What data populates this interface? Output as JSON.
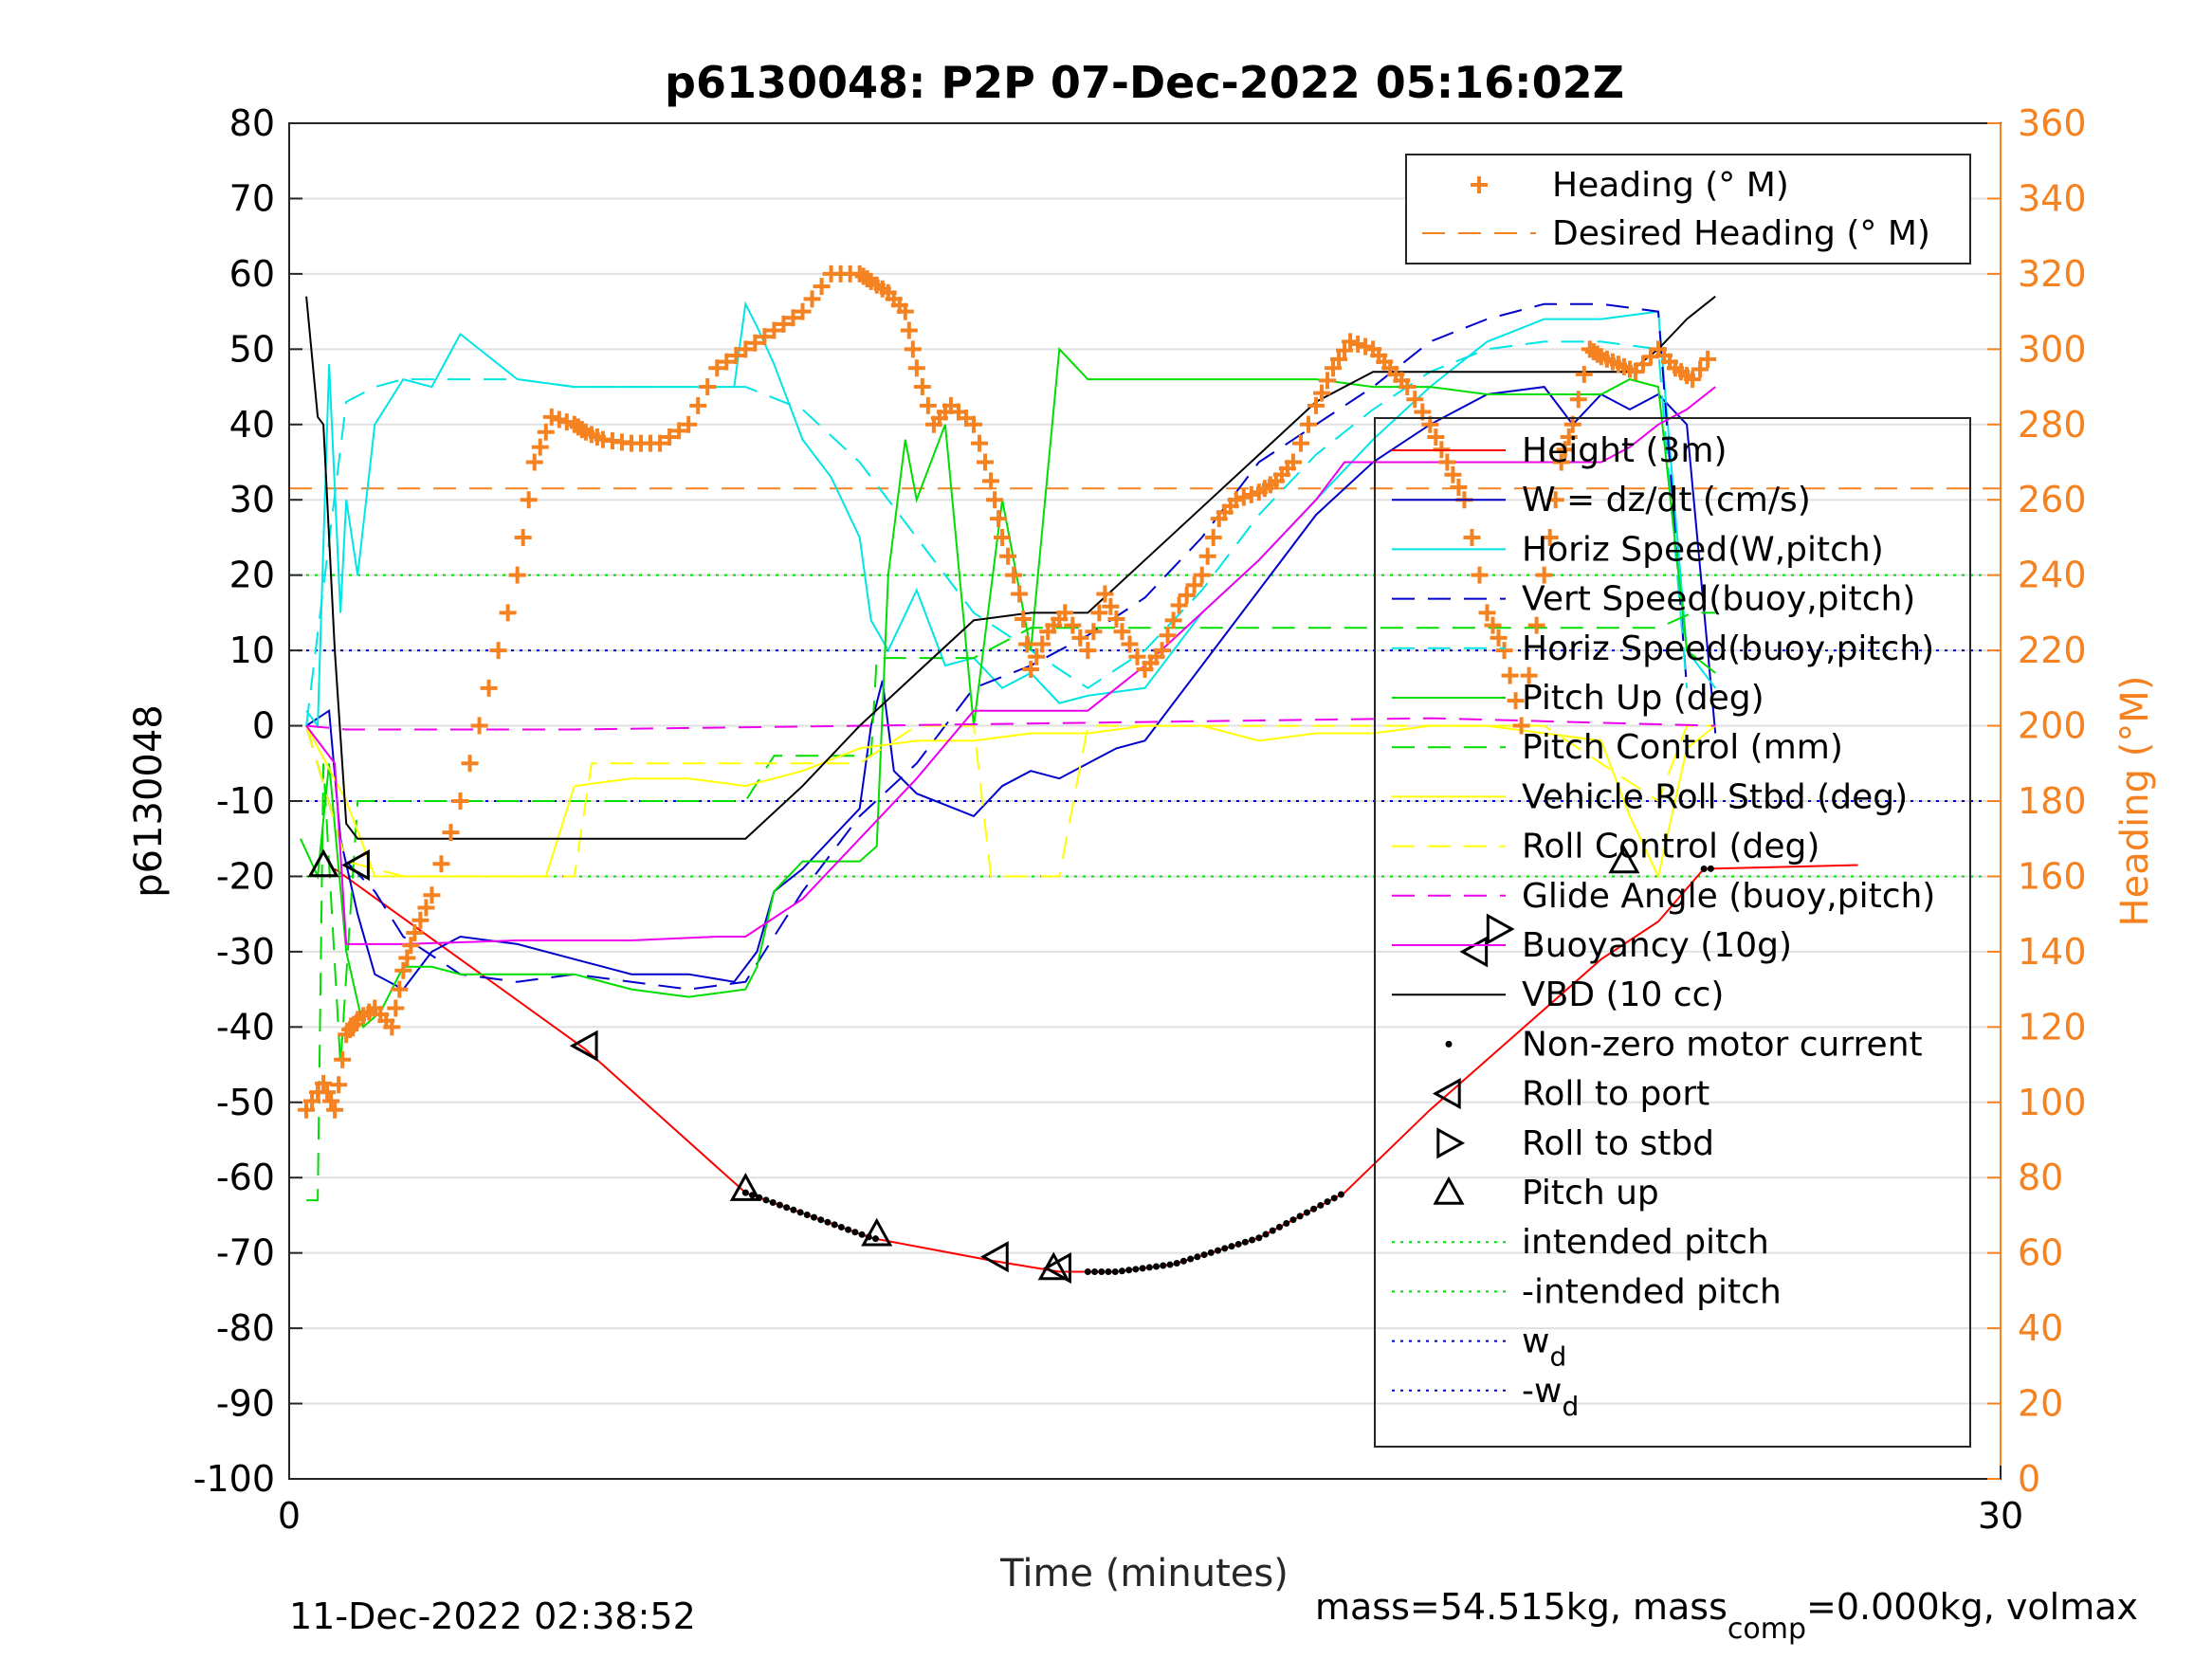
{
  "chart_data": {
    "type": "line",
    "title": "p6130048: P2P 07-Dec-2022 05:16:02Z",
    "xlabel": "Time (minutes)",
    "ylabel": "p6130048",
    "y2label": "Heading (°M)",
    "xlim": [
      0,
      30
    ],
    "ylim": [
      -100,
      80
    ],
    "y2lim": [
      0,
      360
    ],
    "xticks": [
      "0",
      "30"
    ],
    "yticks": [
      "-100",
      "-90",
      "-80",
      "-70",
      "-60",
      "-50",
      "-40",
      "-30",
      "-20",
      "-10",
      "0",
      "10",
      "20",
      "30",
      "40",
      "50",
      "60",
      "70",
      "80"
    ],
    "y2ticks": [
      "0",
      "20",
      "40",
      "60",
      "80",
      "100",
      "120",
      "140",
      "160",
      "180",
      "200",
      "220",
      "240",
      "260",
      "280",
      "300",
      "320",
      "340",
      "360"
    ],
    "grid": true,
    "footer_left": "11-Dec-2022 02:38:52",
    "footer_right": {
      "pre": "mass=54.515kg, mass",
      "sub": "comp",
      "post": "=0.000kg, volmax"
    },
    "legend_top": [
      {
        "name": "Heading (° M)",
        "style": "plus",
        "color": "#f58220"
      },
      {
        "name": "Desired Heading (° M)",
        "style": "dash",
        "color": "#f58220"
      }
    ],
    "legend_main": [
      {
        "name": "Height (3m)",
        "style": "solid",
        "color": "#ff0000"
      },
      {
        "name": "W = dz/dt (cm/s)",
        "style": "solid",
        "color": "#0000cc"
      },
      {
        "name": "Horiz Speed(W,pitch)",
        "style": "solid",
        "color": "#00e5e5"
      },
      {
        "name": "Vert Speed(buoy,pitch)",
        "style": "dash",
        "color": "#0000cc"
      },
      {
        "name": "Horiz Speed(buoy,pitch)",
        "style": "dash",
        "color": "#00e5e5"
      },
      {
        "name": "Pitch Up (deg)",
        "style": "solid",
        "color": "#00dd00"
      },
      {
        "name": "Pitch Control (mm)",
        "style": "dash",
        "color": "#00dd00"
      },
      {
        "name": "Vehicle Roll Stbd (deg)",
        "style": "solid",
        "color": "#ffff00"
      },
      {
        "name": "Roll Control (deg)",
        "style": "dash",
        "color": "#ffff00"
      },
      {
        "name": "Glide Angle (buoy,pitch)",
        "style": "dash",
        "color": "#ee00ee"
      },
      {
        "name": "Buoyancy (10g)",
        "style": "solid",
        "color": "#ee00ee"
      },
      {
        "name": "VBD (10 cc)",
        "style": "solid",
        "color": "#000000"
      },
      {
        "name": "Non-zero motor current",
        "style": "dot",
        "color": "#000000"
      },
      {
        "name": "Roll to port",
        "style": "tri-left",
        "color": "#000000"
      },
      {
        "name": "Roll to stbd",
        "style": "tri-right",
        "color": "#000000"
      },
      {
        "name": "Pitch up",
        "style": "tri-up",
        "color": "#000000"
      },
      {
        "name": "intended pitch",
        "style": "dotted",
        "color": "#00dd00"
      },
      {
        "name": "-intended pitch",
        "style": "dotted",
        "color": "#00dd00"
      },
      {
        "name": "w",
        "sub": "d",
        "style": "dotted",
        "color": "#0000cc"
      },
      {
        "name": "-w",
        "sub": "d",
        "style": "dotted",
        "color": "#0000cc"
      }
    ],
    "reference_lines": [
      {
        "axis": "y",
        "value": 20,
        "color": "#00dd00",
        "style": "dotted"
      },
      {
        "axis": "y",
        "value": -20,
        "color": "#00dd00",
        "style": "dotted"
      },
      {
        "axis": "y",
        "value": 10,
        "color": "#0000cc",
        "style": "dotted"
      },
      {
        "axis": "y",
        "value": -10,
        "color": "#0000cc",
        "style": "dotted"
      },
      {
        "axis": "y2",
        "value": 263,
        "color": "#f58220",
        "style": "dash"
      }
    ],
    "series": [
      {
        "name": "Height (3m)",
        "color": "#ff0000",
        "style": "solid",
        "x": [
          0.8,
          5.2,
          8,
          10.2,
          12.3,
          13.5,
          14.5,
          15.5,
          17,
          18.5,
          20,
          21.5,
          23,
          24,
          24.8,
          27.5
        ],
        "y": [
          -19,
          -43,
          -62,
          -68,
          -71,
          -72.5,
          -72.5,
          -71.5,
          -68,
          -62,
          -51,
          -41,
          -31,
          -26,
          -19,
          -18.5
        ]
      },
      {
        "name": "W = dz/dt (cm/s)",
        "color": "#0000cc",
        "style": "solid",
        "x": [
          0.3,
          0.7,
          0.9,
          1.2,
          1.5,
          2,
          2.5,
          3,
          4,
          5,
          6,
          7,
          7.8,
          8.2,
          8.5,
          9,
          10,
          10.2,
          10.4,
          10.6,
          11,
          12,
          12.5,
          13,
          13.5,
          14,
          14.5,
          15,
          16,
          17,
          18,
          19,
          20,
          21,
          22,
          22.5,
          23,
          23.5,
          24,
          24.5,
          25
        ],
        "y": [
          0,
          2,
          -15,
          -25,
          -33,
          -35,
          -30,
          -28,
          -29,
          -31,
          -33,
          -33,
          -34,
          -30,
          -22,
          -19,
          -11,
          0,
          6,
          -6,
          -9,
          -12,
          -8,
          -6,
          -7,
          -5,
          -3,
          -2,
          8,
          18,
          28,
          35,
          40,
          44,
          45,
          40,
          44,
          42,
          44,
          40,
          -1
        ]
      },
      {
        "name": "Horiz Speed(W,pitch)",
        "color": "#00e5e5",
        "style": "solid",
        "x": [
          0.3,
          0.5,
          0.7,
          0.9,
          1,
          1.2,
          1.5,
          2,
          2.5,
          3,
          4,
          5,
          6,
          7,
          7.8,
          8,
          8.2,
          8.5,
          9,
          9.5,
          10,
          10.2,
          10.5,
          11,
          11.5,
          12,
          12.5,
          13,
          13.5,
          14,
          15,
          16,
          17,
          18,
          19,
          20,
          21,
          22,
          23,
          24,
          24.5,
          25
        ],
        "y": [
          2,
          0,
          48,
          15,
          30,
          20,
          40,
          46,
          45,
          52,
          46,
          45,
          45,
          45,
          45,
          56,
          53,
          48,
          38,
          33,
          25,
          14,
          10,
          18,
          8,
          9,
          5,
          7,
          3,
          4,
          5,
          15,
          22,
          30,
          38,
          45,
          51,
          54,
          54,
          55,
          10,
          5
        ]
      },
      {
        "name": "Vert Speed(buoy,pitch)",
        "color": "#0000cc",
        "style": "dash",
        "x": [
          0.3,
          1,
          1.5,
          2,
          3,
          4,
          5,
          6,
          7,
          8,
          9,
          10,
          11,
          12,
          13,
          14,
          15,
          16,
          17,
          18,
          19,
          20,
          21,
          22,
          23,
          24,
          24.5
        ],
        "y": [
          0,
          -18,
          -22,
          -28,
          -33,
          -34,
          -33,
          -34,
          -35,
          -34,
          -22,
          -12,
          -5,
          5,
          8,
          12,
          17,
          25,
          35,
          40,
          45,
          51,
          54,
          56,
          56,
          55,
          5
        ]
      },
      {
        "name": "Horiz Speed(buoy,pitch)",
        "color": "#00e5e5",
        "style": "dash",
        "x": [
          0.3,
          1,
          1.5,
          2,
          3,
          4,
          5,
          6,
          7,
          8,
          9,
          10,
          11,
          12,
          13,
          14,
          15,
          16,
          17,
          18,
          19,
          20,
          21,
          22,
          23,
          24,
          24.5
        ],
        "y": [
          0,
          43,
          45,
          46,
          46,
          46,
          45,
          45,
          45,
          45,
          42,
          35,
          25,
          15,
          10,
          5,
          10,
          18,
          28,
          36,
          42,
          47,
          50,
          51,
          51,
          50,
          5
        ]
      },
      {
        "name": "Pitch Up (deg)",
        "color": "#00dd00",
        "style": "solid",
        "x": [
          0.2,
          0.5,
          0.7,
          1,
          1.3,
          1.6,
          2,
          2.5,
          3,
          4,
          5,
          6,
          7,
          8,
          8.2,
          8.5,
          9,
          10,
          10.3,
          10.5,
          10.8,
          11,
          11.5,
          12,
          12.5,
          13,
          13.5,
          14,
          15,
          16,
          17,
          18,
          19,
          20,
          21,
          22,
          23,
          23.5,
          24,
          24.5,
          25
        ],
        "y": [
          -15,
          -20,
          -5,
          -30,
          -40,
          -38,
          -32,
          -32,
          -33,
          -33,
          -33,
          -35,
          -36,
          -35,
          -32,
          -22,
          -18,
          -18,
          -16,
          20,
          38,
          30,
          40,
          0,
          30,
          10,
          50,
          46,
          46,
          46,
          46,
          46,
          45,
          45,
          44,
          44,
          44,
          46,
          45,
          10,
          7
        ]
      },
      {
        "name": "Pitch Control (mm)",
        "color": "#00dd00",
        "style": "dash",
        "x": [
          0.3,
          0.5,
          0.6,
          0.9,
          1.2,
          2,
          4,
          6,
          7.5,
          8,
          8.5,
          9,
          10,
          10.2,
          10.3,
          11,
          12,
          13,
          14,
          15,
          16,
          17,
          18,
          19,
          20,
          21,
          22,
          23,
          24,
          24.6,
          25
        ],
        "y": [
          -63,
          -63,
          -5,
          -45,
          -10,
          -10,
          -10,
          -10,
          -10,
          -10,
          -4,
          -4,
          -4,
          -4,
          9,
          9,
          9,
          13,
          13,
          13,
          13,
          13,
          13,
          13,
          13,
          13,
          13,
          13,
          13,
          15,
          15
        ]
      },
      {
        "name": "Vehicle Roll Stbd (deg)",
        "color": "#ffff00",
        "style": "solid",
        "x": [
          0.3,
          1,
          1.5,
          2,
          3,
          4,
          4.5,
          5,
          6,
          7,
          8,
          9,
          10,
          11,
          12,
          13,
          14,
          15,
          16,
          17,
          18,
          19,
          20,
          21,
          22,
          23,
          23.5,
          24,
          24.5,
          25
        ],
        "y": [
          0,
          -10,
          -20,
          -20,
          -20,
          -20,
          -20,
          -8,
          -7,
          -7,
          -8,
          -6,
          -3,
          -2,
          -2,
          -1,
          -1,
          0,
          0,
          -2,
          -1,
          -1,
          0,
          0,
          -1,
          -2,
          -12,
          -20,
          -3,
          0
        ]
      },
      {
        "name": "Roll Control (deg)",
        "color": "#ffff00",
        "style": "dash",
        "x": [
          0.3,
          1,
          2,
          3,
          4,
          5,
          5.3,
          6,
          7,
          8,
          9,
          10,
          11,
          12,
          12.3,
          13,
          13.5,
          14,
          15,
          16,
          17,
          18,
          19,
          20,
          21,
          22,
          23,
          24,
          24.5,
          25
        ],
        "y": [
          0,
          -18,
          -20,
          -20,
          -20,
          -20,
          -5,
          -5,
          -5,
          -5,
          -5,
          -5,
          0,
          0,
          -20,
          -20,
          -20,
          0,
          0,
          0,
          0,
          0,
          0,
          0,
          0,
          0,
          -5,
          -10,
          0,
          0
        ]
      },
      {
        "name": "Glide Angle (buoy,pitch)",
        "color": "#ee00ee",
        "style": "dash",
        "x": [
          0.3,
          1,
          5,
          10,
          15,
          20,
          25
        ],
        "y": [
          0,
          -0.5,
          -0.5,
          0,
          0.5,
          1,
          0
        ]
      },
      {
        "name": "Buoyancy (10g)",
        "color": "#ee00ee",
        "style": "solid",
        "x": [
          0.3,
          0.8,
          1,
          2,
          4,
          6,
          7.5,
          8,
          9,
          10,
          11,
          12,
          13,
          14,
          15,
          16,
          17,
          18,
          18.5,
          20,
          22,
          23,
          23.5,
          24,
          24.5,
          25
        ],
        "y": [
          0,
          -5,
          -29,
          -29,
          -28.5,
          -28.5,
          -28,
          -28,
          -23,
          -15,
          -7,
          2,
          2,
          2,
          8,
          15,
          22,
          30,
          35,
          35,
          35,
          35,
          37,
          40,
          42,
          45
        ]
      },
      {
        "name": "VBD (10 cc)",
        "color": "#000000",
        "style": "solid",
        "x": [
          0.3,
          0.5,
          0.6,
          0.8,
          1,
          1.2,
          2,
          4,
          6,
          7,
          8,
          9,
          10,
          11,
          12,
          13,
          14,
          15,
          16,
          17,
          18,
          19,
          20,
          21,
          22,
          23,
          23.5,
          24,
          24.5,
          25
        ],
        "y": [
          57,
          41,
          40,
          10,
          -13,
          -15,
          -15,
          -15,
          -15,
          -15,
          -15,
          -8,
          0,
          7,
          14,
          15,
          15,
          22,
          29,
          36,
          43,
          47,
          47,
          47,
          47,
          47,
          47,
          50,
          54,
          57
        ]
      },
      {
        "name": "Heading (° M)",
        "color": "#f58220",
        "style": "plus",
        "axis": "y2",
        "x": [
          0.3,
          0.6,
          0.8,
          1,
          1.2,
          1.5,
          1.8,
          2,
          2.2,
          2.5,
          3,
          3.5,
          4,
          4.3,
          4.6,
          5,
          5.2,
          5.5,
          6,
          6.5,
          7,
          7.5,
          8,
          8.5,
          9,
          9.5,
          10,
          10.2,
          10.5,
          10.8,
          11,
          11.3,
          11.6,
          12,
          12.3,
          12.5,
          12.8,
          13,
          13.3,
          13.6,
          14,
          14.3,
          14.6,
          15,
          15.3,
          15.6,
          16,
          16.3,
          16.6,
          17,
          17.3,
          17.6,
          18,
          18.3,
          18.6,
          19,
          19.3,
          19.6,
          20,
          20.3,
          20.6,
          21,
          21.3,
          21.6,
          22,
          22.3,
          22.5,
          22.8,
          23,
          23.3,
          23.6,
          24,
          24.3,
          24.6,
          25
        ],
        "y": [
          98,
          105,
          98,
          118,
          122,
          125,
          120,
          135,
          145,
          155,
          180,
          210,
          240,
          270,
          282,
          280,
          278,
          276,
          275,
          275,
          280,
          295,
          300,
          305,
          310,
          320,
          320,
          318,
          315,
          310,
          295,
          280,
          285,
          280,
          265,
          250,
          235,
          215,
          225,
          230,
          220,
          235,
          225,
          215,
          220,
          232,
          240,
          255,
          260,
          262,
          265,
          270,
          285,
          295,
          302,
          300,
          295,
          290,
          280,
          270,
          260,
          230,
          220,
          200,
          240,
          270,
          280,
          300,
          298,
          296,
          294,
          300,
          295,
          292,
          300
        ]
      }
    ],
    "markers": {
      "roll_to_port": {
        "x": [
          1.2,
          5.2,
          12.4,
          13.5,
          20.8
        ],
        "y": [
          -18.5,
          -42.5,
          -70.5,
          -72,
          -30
        ]
      },
      "roll_to_stbd": {
        "x": [
          21.2
        ],
        "y": [
          -27
        ]
      },
      "pitch_up": {
        "x": [
          0.6,
          8,
          10.3,
          13.4,
          23.4
        ],
        "y": [
          -18.5,
          -61.5,
          -67.5,
          -72,
          -18
        ]
      },
      "motor_current": {
        "x_start": [
          8,
          14,
          24.8
        ],
        "x_end": [
          10.3,
          18.5,
          25
        ]
      }
    }
  }
}
